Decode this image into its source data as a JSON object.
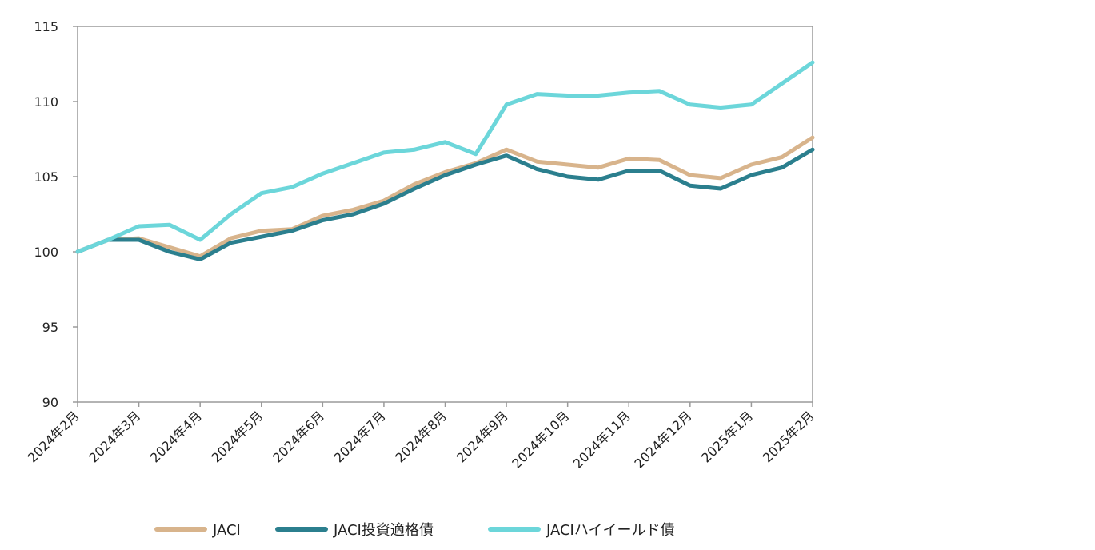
{
  "chart_data": {
    "type": "line",
    "title": "",
    "xlabel": "",
    "ylabel": "",
    "ylim": [
      90,
      115
    ],
    "yticks": [
      90,
      95,
      100,
      105,
      110,
      115
    ],
    "grid": false,
    "legend_position": "bottom",
    "x_tick_labels": [
      "2024年2月",
      "2024年3月",
      "2024年4月",
      "2024年5月",
      "2024年6月",
      "2024年7月",
      "2024年8月",
      "2024年9月",
      "2024年10月",
      "2024年11月",
      "2024年12月",
      "2025年1月",
      "2025年2月"
    ],
    "x": [
      "2024年2月",
      "2024年2月中",
      "2024年3月",
      "2024年3月中",
      "2024年4月",
      "2024年4月中",
      "2024年5月",
      "2024年5月中",
      "2024年6月",
      "2024年6月中",
      "2024年7月",
      "2024年7月中",
      "2024年8月",
      "2024年8月中",
      "2024年9月",
      "2024年9月中",
      "2024年10月",
      "2024年10月中",
      "2024年11月",
      "2024年11月中",
      "2024年12月",
      "2024年12月中",
      "2025年1月",
      "2025年1月中",
      "2025年2月"
    ],
    "series": [
      {
        "name": "JACI",
        "color": "#d8b48c",
        "values": [
          100.0,
          100.8,
          100.9,
          100.3,
          99.7,
          100.9,
          101.4,
          101.5,
          102.4,
          102.8,
          103.4,
          104.5,
          105.3,
          105.9,
          106.8,
          106.0,
          105.8,
          105.6,
          106.2,
          106.1,
          105.1,
          104.9,
          105.8,
          106.3,
          107.6
        ]
      },
      {
        "name": "JACI投資適格債",
        "color": "#2b7f8e",
        "values": [
          100.0,
          100.8,
          100.8,
          100.0,
          99.5,
          100.6,
          101.0,
          101.4,
          102.1,
          102.5,
          103.2,
          104.2,
          105.1,
          105.8,
          106.4,
          105.5,
          105.0,
          104.8,
          105.4,
          105.4,
          104.4,
          104.2,
          105.1,
          105.6,
          106.8
        ]
      },
      {
        "name": "JACIハイイールド債",
        "color": "#6cd6da",
        "values": [
          100.0,
          100.8,
          101.7,
          101.8,
          100.8,
          102.5,
          103.9,
          104.3,
          105.2,
          105.9,
          106.6,
          106.8,
          107.3,
          106.5,
          109.8,
          110.5,
          110.4,
          110.4,
          110.6,
          110.7,
          109.8,
          109.6,
          109.8,
          111.2,
          112.6
        ]
      }
    ]
  }
}
